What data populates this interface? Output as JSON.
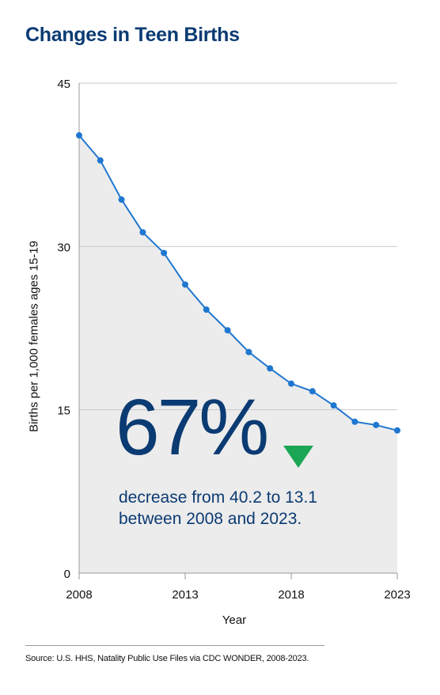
{
  "title": "Changes in Teen Births",
  "chart_data": {
    "type": "area",
    "x": [
      2008,
      2009,
      2010,
      2011,
      2012,
      2013,
      2014,
      2015,
      2016,
      2017,
      2018,
      2019,
      2020,
      2021,
      2022,
      2023
    ],
    "series": [
      {
        "values": [
          40.2,
          37.9,
          34.3,
          31.3,
          29.4,
          26.5,
          24.2,
          22.3,
          20.3,
          18.8,
          17.4,
          16.7,
          15.4,
          13.9,
          13.6,
          13.1
        ]
      }
    ],
    "xlabel": "Year",
    "ylabel": "Births per 1,000 females ages 15-19",
    "xticks": [
      "2008",
      "2013",
      "2018",
      "2023"
    ],
    "yticks": [
      "0",
      "15",
      "30",
      "45"
    ],
    "xlim": [
      2008,
      2023
    ],
    "ylim": [
      0,
      45
    ],
    "grid": "horizontal",
    "line_color": "#1f77d0",
    "fill_color": "#ececec"
  },
  "annotation": {
    "big_number": "67%",
    "arrow": "down-triangle-icon",
    "arrow_color": "#1aa655",
    "line1": "decrease from 40.2 to 13.1",
    "line2": "between 2008 and 2023."
  },
  "source": "Source: U.S. HHS, Natality Public Use Files via CDC WONDER, 2008-2023."
}
